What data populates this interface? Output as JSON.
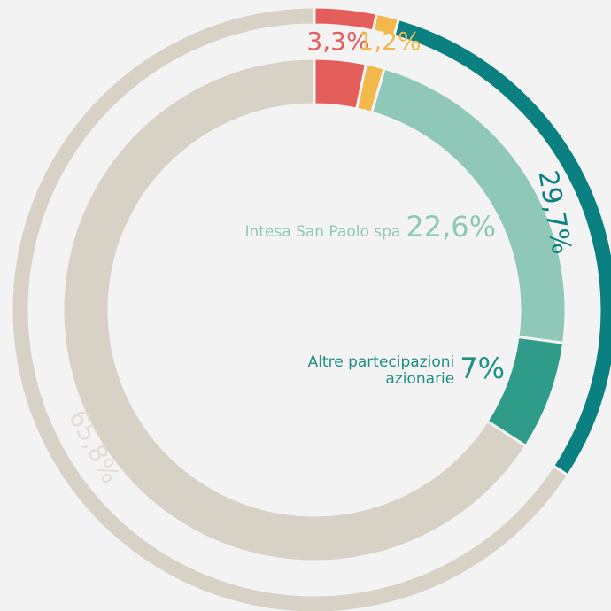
{
  "chart_data": {
    "type": "donut",
    "outer": {
      "values": [
        3.3,
        1.2,
        29.7,
        65.8
      ],
      "value_labels": [
        "3,3%",
        "1,2%",
        "29,7%",
        "65,8%"
      ],
      "colors": [
        "#e35d5b",
        "#f2b84b",
        "#0b8080",
        "#d8d1c6"
      ]
    },
    "inner": {
      "values": [
        3.3,
        1.2,
        22.6,
        7,
        65.9
      ],
      "labels": [
        null,
        null,
        "Intesa San Paolo spa",
        "Altre partecipazioni azionarie",
        null
      ],
      "value_labels": [
        null,
        null,
        "22,6%",
        "7%",
        null
      ],
      "colors": [
        "#e35d5b",
        "#f2b84b",
        "#8fc8b8",
        "#2f9c89",
        "#d8d1c6"
      ]
    }
  }
}
